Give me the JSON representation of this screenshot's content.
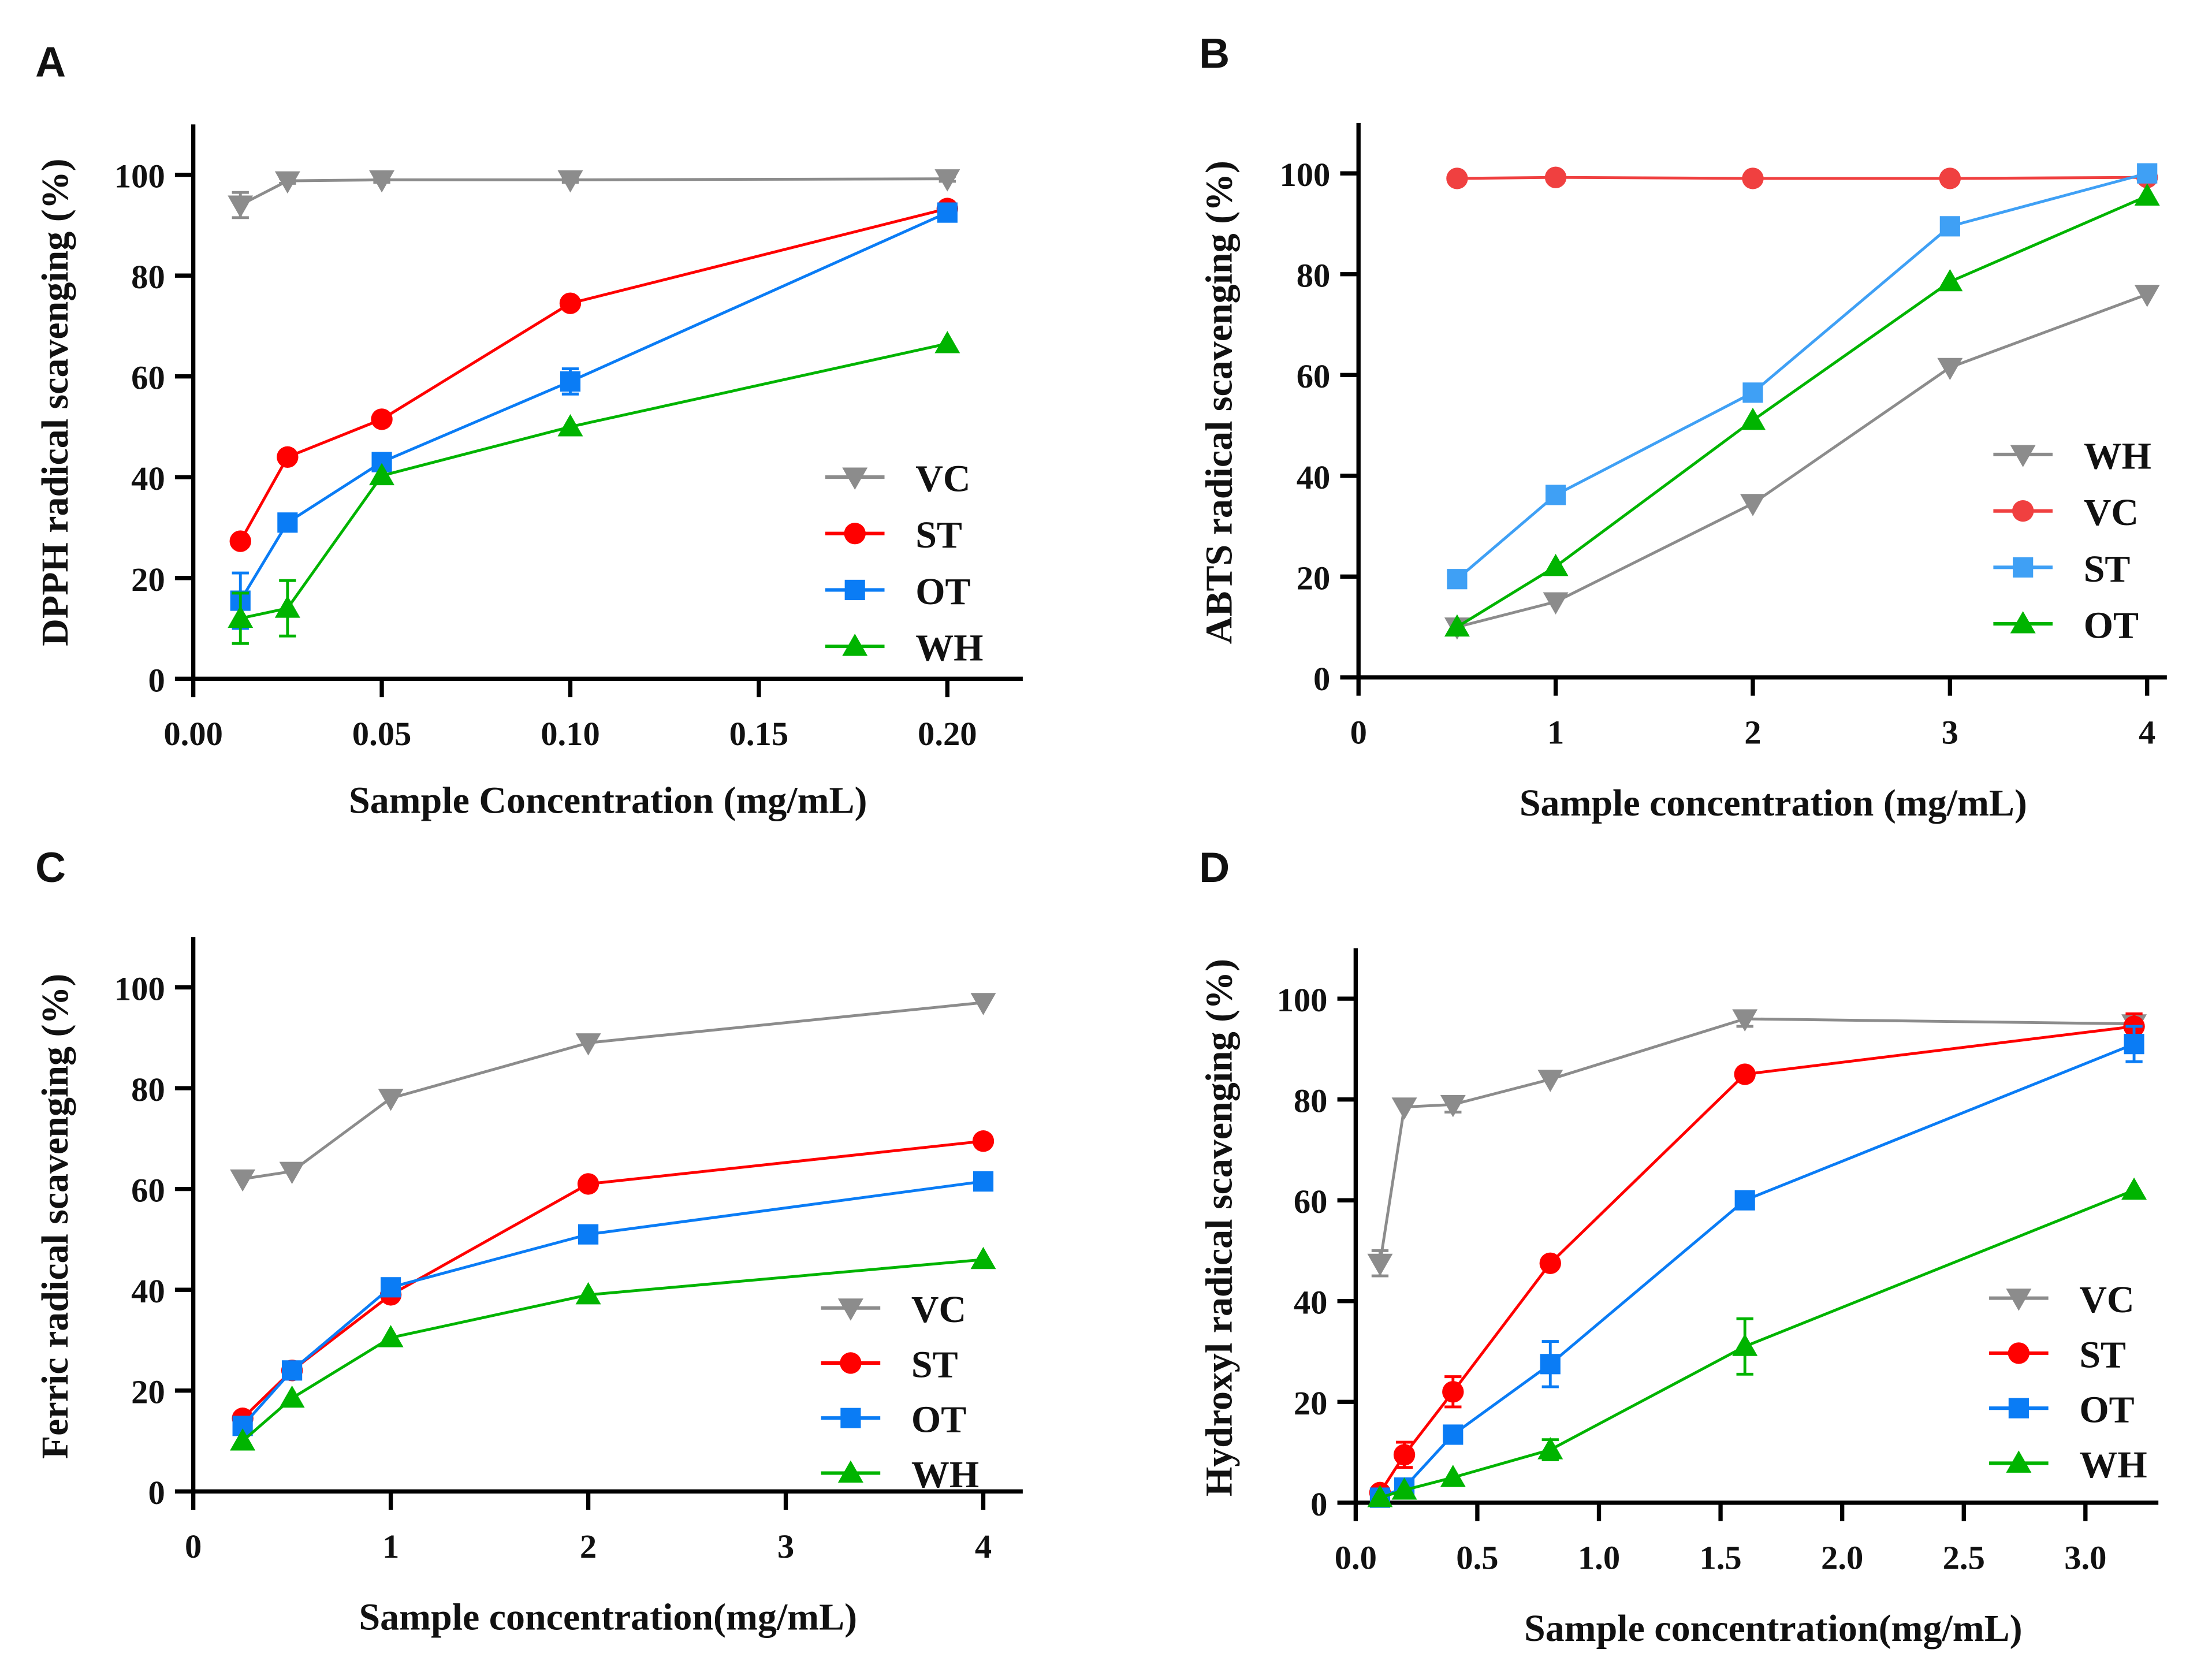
{
  "colors": {
    "VC": "#8c8c8c",
    "ST": "#ff0000",
    "OT": "#0a7cf5",
    "WH": "#00b400",
    "ST_B": "#3fa0f5",
    "axis": "#000000"
  },
  "chart_data": [
    {
      "type": "line",
      "panel": "A",
      "xlabel": "Sample Concentration (mg/mL)",
      "ylabel": "DPPH radical scavenging (%)",
      "xlim": [
        0,
        0.22
      ],
      "ylim": [
        0,
        110
      ],
      "xticks": [
        0,
        0.05,
        0.1,
        0.15,
        0.2
      ],
      "xtick_labels": [
        "0.00",
        "0.05",
        "0.10",
        "0.15",
        "0.20"
      ],
      "yticks": [
        0,
        20,
        40,
        60,
        80,
        100
      ],
      "ytick_labels": [
        "0",
        "20",
        "40",
        "60",
        "80",
        "100"
      ],
      "x": [
        0.0125,
        0.025,
        0.05,
        0.1,
        0.2
      ],
      "legend_position": "bottom-right",
      "series": [
        {
          "name": "VC",
          "marker": "triangle-down",
          "color": "#8c8c8c",
          "values": [
            94,
            98.8,
            99,
            99,
            99.2
          ],
          "err": [
            2.5,
            0.5,
            0.5,
            0.5,
            0.5
          ]
        },
        {
          "name": "ST",
          "marker": "circle",
          "color": "#ff0000",
          "values": [
            27.3,
            44,
            51.5,
            74.5,
            93.3
          ],
          "err": [
            0,
            0,
            0,
            0,
            0
          ]
        },
        {
          "name": "OT",
          "marker": "square",
          "color": "#0a7cf5",
          "values": [
            15.5,
            31,
            43,
            59,
            92.5
          ],
          "err": [
            5.5,
            0,
            0,
            2.5,
            0
          ]
        },
        {
          "name": "WH",
          "marker": "triangle-up",
          "color": "#00b400",
          "values": [
            12,
            14,
            40.3,
            50,
            66.5
          ],
          "err": [
            5,
            5.5,
            0,
            0,
            0
          ]
        }
      ]
    },
    {
      "type": "line",
      "panel": "B",
      "xlabel": "Sample concentration (mg/mL)",
      "ylabel": "ABTS radical scavenging (%)",
      "xlim": [
        0,
        4.1
      ],
      "ylim": [
        0,
        110
      ],
      "xticks": [
        0,
        1,
        2,
        3,
        4
      ],
      "xtick_labels": [
        "0",
        "1",
        "2",
        "3",
        "4"
      ],
      "yticks": [
        0,
        20,
        40,
        60,
        80,
        100
      ],
      "ytick_labels": [
        "0",
        "20",
        "40",
        "60",
        "80",
        "100"
      ],
      "x": [
        0.5,
        1,
        2,
        3,
        4
      ],
      "legend_position": "bottom-right",
      "series": [
        {
          "name": "WH",
          "marker": "triangle-down",
          "color": "#8c8c8c",
          "values": [
            10,
            15,
            34.5,
            61.5,
            76
          ],
          "err": [
            0,
            0,
            0,
            0,
            0
          ]
        },
        {
          "name": "VC",
          "marker": "circle",
          "color": "#f04040",
          "values": [
            99,
            99.2,
            99,
            99,
            99.2
          ],
          "err": [
            0,
            0,
            0,
            0,
            0
          ]
        },
        {
          "name": "ST",
          "marker": "square",
          "color": "#3fa0f5",
          "values": [
            19.5,
            36.2,
            56.5,
            89.5,
            100
          ],
          "err": [
            0,
            0,
            0,
            0,
            0
          ]
        },
        {
          "name": "OT",
          "marker": "triangle-up",
          "color": "#00b400",
          "values": [
            10,
            22,
            51,
            78.5,
            95.5
          ],
          "err": [
            0,
            0,
            0,
            0,
            0
          ]
        }
      ]
    },
    {
      "type": "line",
      "panel": "C",
      "xlabel": "Sample concentration(mg/mL)",
      "ylabel": "Ferric radical scavenging (%)",
      "xlim": [
        0,
        4.2
      ],
      "ylim": [
        0,
        110
      ],
      "xticks": [
        0,
        1,
        2,
        3,
        4
      ],
      "xtick_labels": [
        "0",
        "1",
        "2",
        "3",
        "4"
      ],
      "yticks": [
        0,
        20,
        40,
        60,
        80,
        100
      ],
      "ytick_labels": [
        "0",
        "20",
        "40",
        "60",
        "80",
        "100"
      ],
      "x": [
        0.25,
        0.5,
        1,
        2,
        4
      ],
      "legend_position": "bottom-right",
      "series": [
        {
          "name": "VC",
          "marker": "triangle-down",
          "color": "#8c8c8c",
          "values": [
            62,
            63.5,
            78,
            89,
            97
          ],
          "err": [
            0,
            0,
            0,
            0,
            0
          ]
        },
        {
          "name": "ST",
          "marker": "circle",
          "color": "#ff0000",
          "values": [
            14.5,
            24,
            39,
            61,
            69.5
          ],
          "err": [
            0,
            0,
            0,
            0,
            0
          ]
        },
        {
          "name": "OT",
          "marker": "square",
          "color": "#0a7cf5",
          "values": [
            13,
            24,
            40.5,
            51,
            61.5
          ],
          "err": [
            0,
            0,
            0,
            0,
            0
          ]
        },
        {
          "name": "WH",
          "marker": "triangle-up",
          "color": "#00b400",
          "values": [
            10,
            18.5,
            30.5,
            39,
            46
          ],
          "err": [
            0,
            0,
            0,
            0,
            0
          ]
        }
      ]
    },
    {
      "type": "line",
      "panel": "D",
      "xlabel": "Sample concentration(mg/mL)",
      "ylabel": "Hydroxyl radical scavenging (%)",
      "xlim": [
        0,
        3.3
      ],
      "ylim": [
        0,
        110
      ],
      "xticks": [
        0,
        0.5,
        1,
        1.5,
        2,
        2.5,
        3
      ],
      "xtick_labels": [
        "0.0",
        "0.5",
        "1.0",
        "1.5",
        "2.0",
        "2.5",
        "3.0"
      ],
      "yticks": [
        0,
        20,
        40,
        60,
        80,
        100
      ],
      "ytick_labels": [
        "0",
        "20",
        "40",
        "60",
        "80",
        "100"
      ],
      "x": [
        0.1,
        0.2,
        0.4,
        0.8,
        1.6,
        3.2
      ],
      "legend_position": "bottom-right",
      "series": [
        {
          "name": "VC",
          "marker": "triangle-down",
          "color": "#8c8c8c",
          "values": [
            47.5,
            78.5,
            79,
            84,
            96,
            95
          ],
          "err": [
            2.5,
            0,
            1.5,
            0,
            1.5,
            0
          ]
        },
        {
          "name": "ST",
          "marker": "circle",
          "color": "#ff0000",
          "values": [
            2,
            9.5,
            22,
            47.5,
            85,
            94.5
          ],
          "err": [
            0,
            2.5,
            3,
            0,
            0,
            2.5
          ]
        },
        {
          "name": "OT",
          "marker": "square",
          "color": "#0a7cf5",
          "values": [
            1,
            3,
            13.5,
            27.5,
            60,
            91
          ],
          "err": [
            0,
            0,
            0,
            4.5,
            0,
            3.5
          ]
        },
        {
          "name": "WH",
          "marker": "triangle-up",
          "color": "#00b400",
          "values": [
            1,
            2.5,
            5,
            10.5,
            31,
            62
          ],
          "err": [
            0,
            0,
            0,
            2,
            5.5,
            0
          ]
        }
      ]
    }
  ]
}
